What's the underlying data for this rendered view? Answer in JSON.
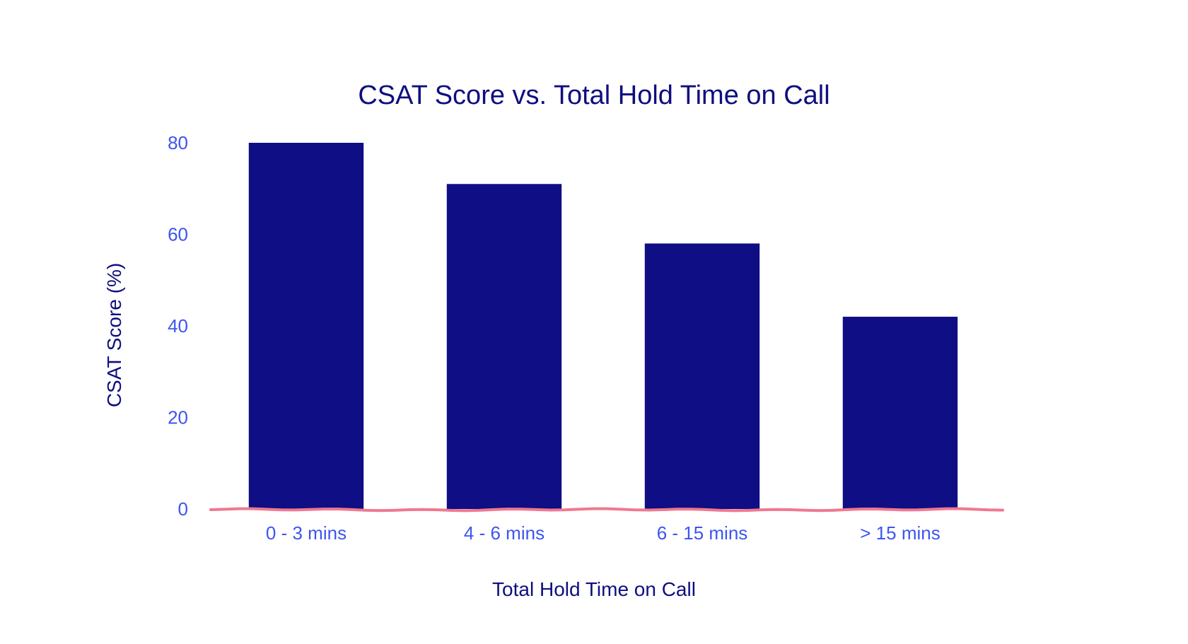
{
  "chart_data": {
    "type": "bar",
    "title": "CSAT Score vs. Total Hold Time on Call",
    "xlabel": "Total Hold Time on Call",
    "ylabel": "CSAT Score (%)",
    "categories": [
      "0 - 3 mins",
      "4 - 6 mins",
      "6 - 15 mins",
      "> 15 mins"
    ],
    "values": [
      80,
      71,
      58,
      42
    ],
    "ylim": [
      0,
      80
    ],
    "yticks": [
      0,
      20,
      40,
      60,
      80
    ],
    "grid": false,
    "legend": "none",
    "colors": {
      "bar": "#0f0e84",
      "baseline": "#f07890",
      "title": "#0e0e80",
      "tick": "#3d55f0"
    }
  }
}
